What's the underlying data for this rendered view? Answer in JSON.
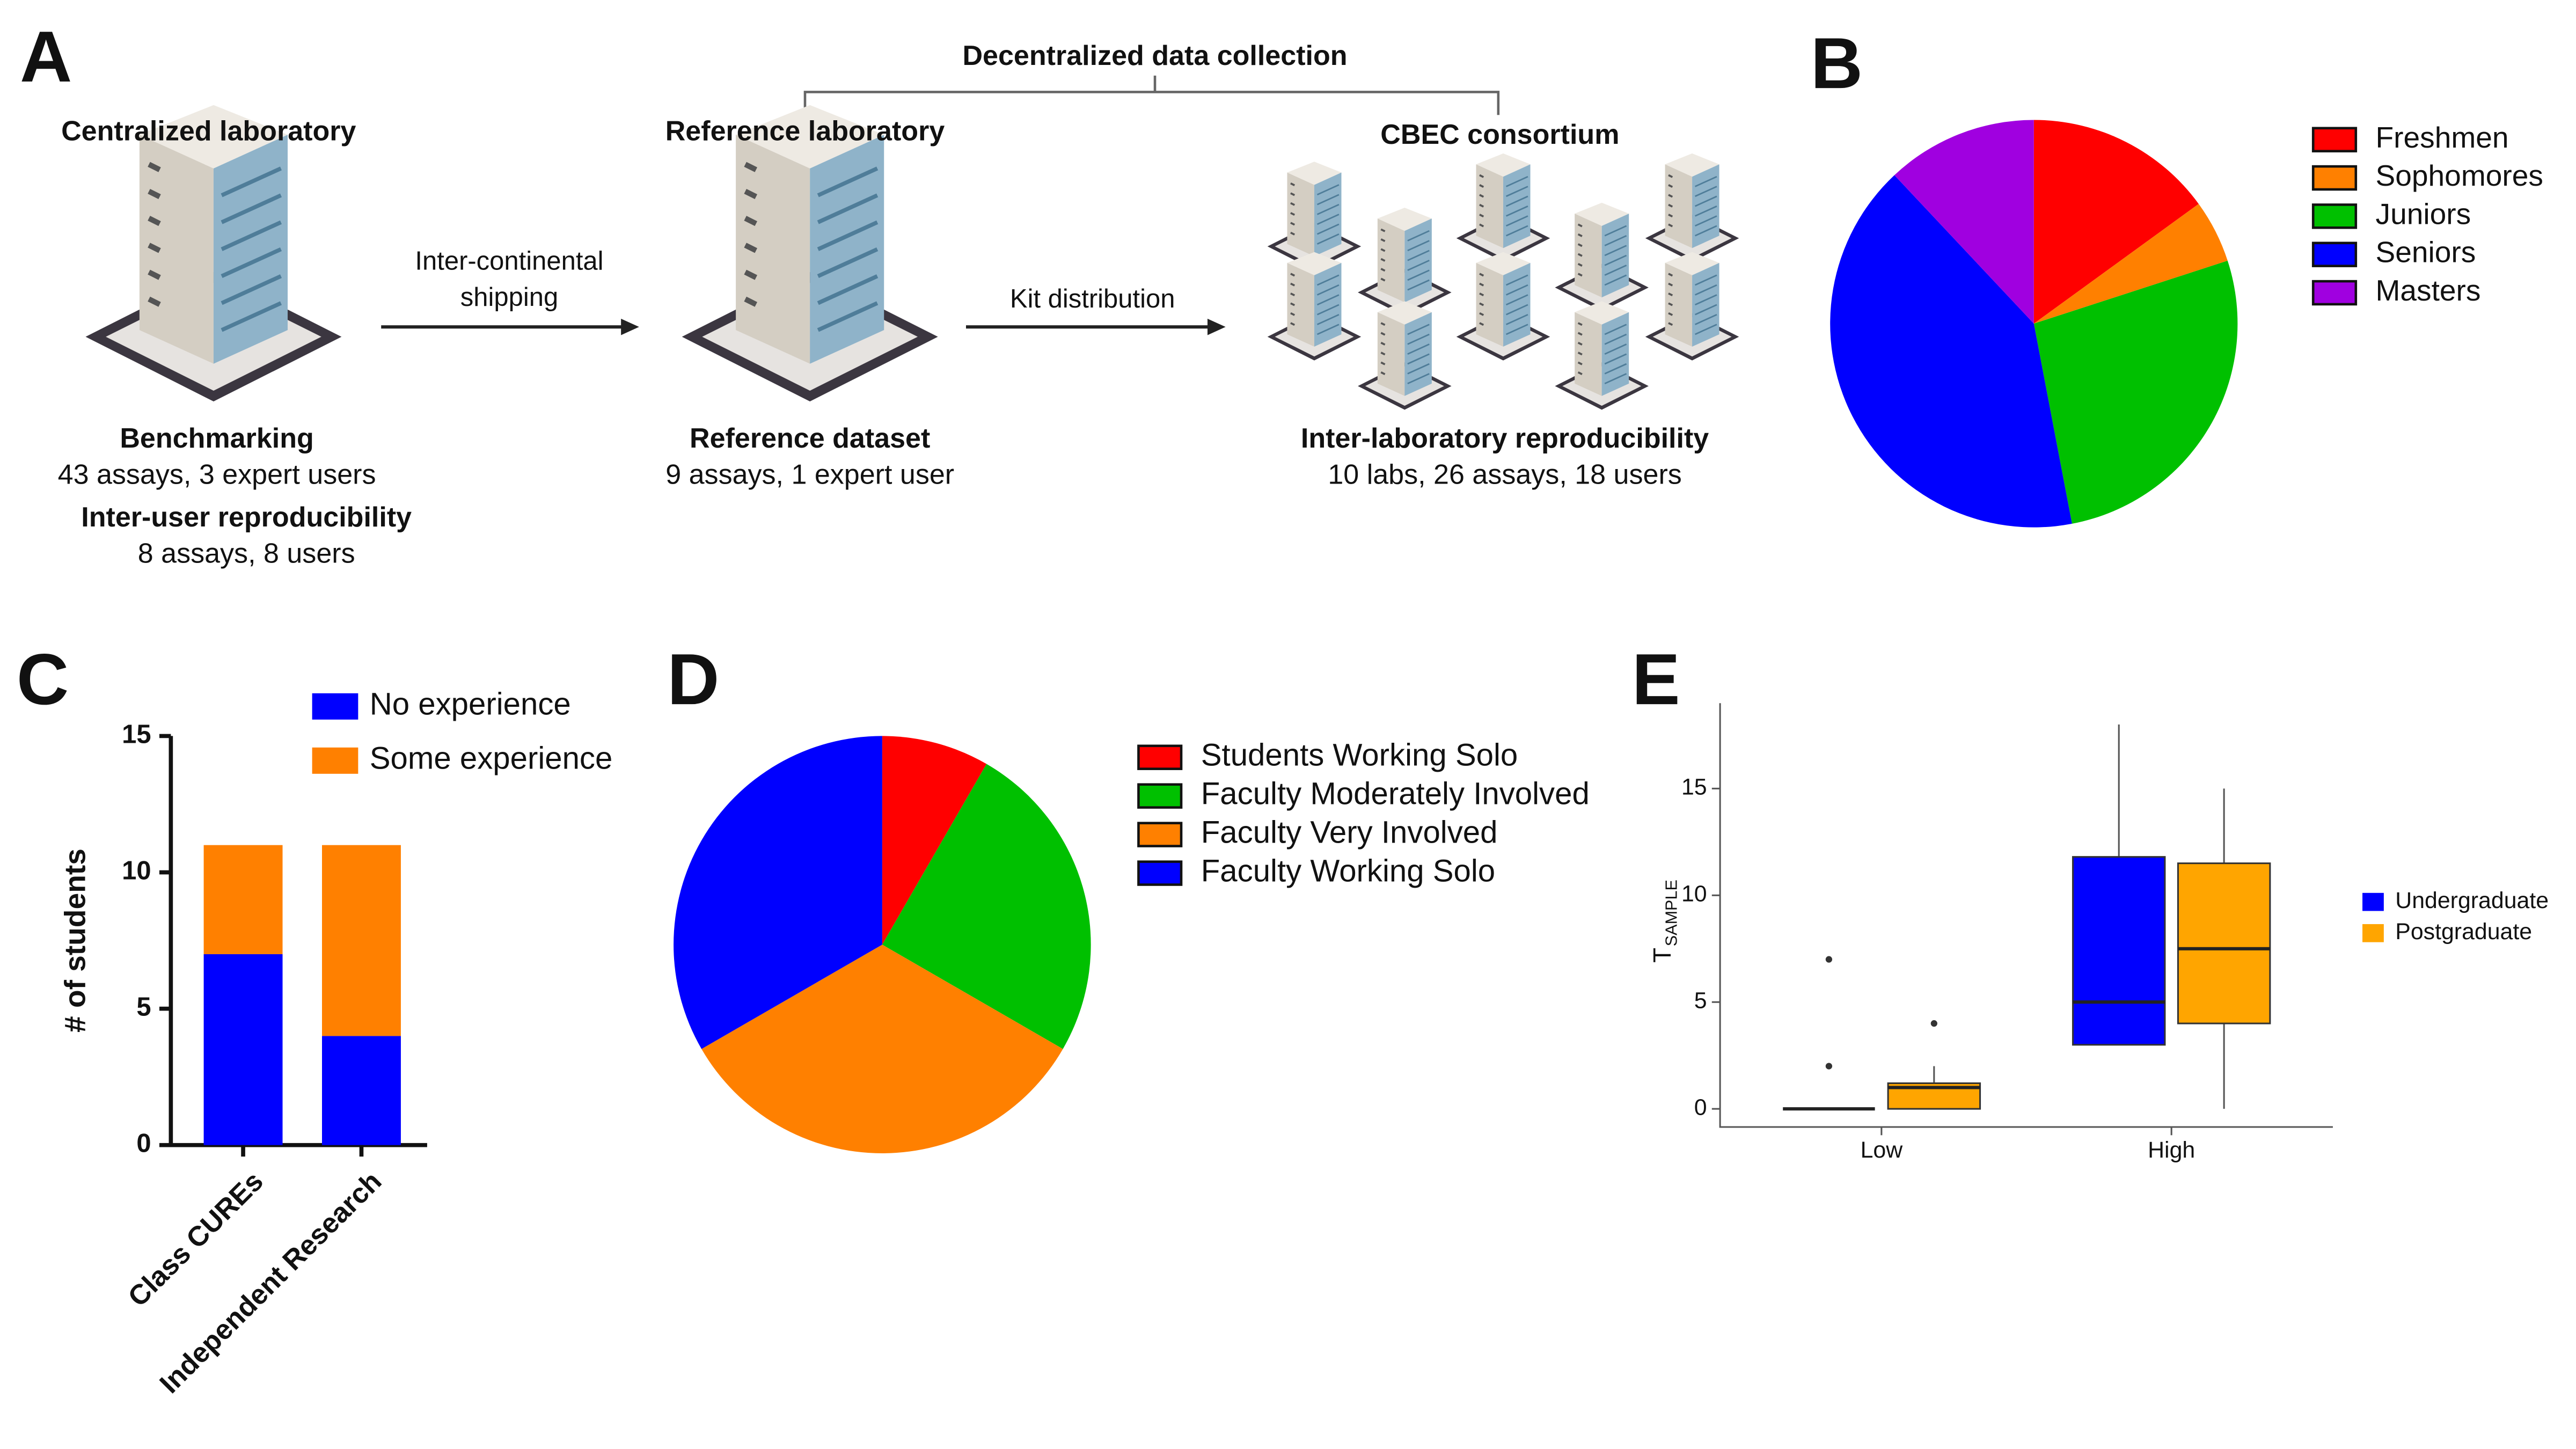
{
  "diagram": {
    "label": "A",
    "bracket_title": "Decentralized data collection",
    "nodes": [
      {
        "title": "Centralized laboratory",
        "sections": [
          {
            "heading": "Benchmarking",
            "detail": "43 assays, 3 expert users"
          },
          {
            "heading": "Inter-user reproducibility",
            "detail": "8 assays, 8 users"
          }
        ]
      },
      {
        "title": "Reference laboratory",
        "sections": [
          {
            "heading": "Reference dataset",
            "detail": "9 assays, 1 expert user"
          }
        ]
      },
      {
        "title": "CBEC consortium",
        "sections": [
          {
            "heading": "Inter-laboratory reproducibility",
            "detail": "10 labs, 26 assays, 18 users"
          }
        ]
      }
    ],
    "edges": [
      {
        "label": [
          "Inter-continental",
          "shipping"
        ]
      },
      {
        "label": [
          "Kit distribution"
        ]
      }
    ]
  },
  "chart_data": [
    {
      "type": "pie",
      "panel_label": "B",
      "categories": [
        "Freshmen",
        "Sophomores",
        "Juniors",
        "Seniors",
        "Masters"
      ],
      "values": [
        15,
        5,
        27,
        41,
        12
      ],
      "colors": [
        "#ff0000",
        "#ff8000",
        "#00c000",
        "#0000ff",
        "#a000e0"
      ]
    },
    {
      "type": "bar",
      "panel_label": "C",
      "stacked": true,
      "y_label": "# of students",
      "categories": [
        "Class CUREs",
        "Independent Research"
      ],
      "series": [
        {
          "name": "No experience",
          "color": "#0000ff",
          "values": [
            7,
            4
          ]
        },
        {
          "name": "Some experience",
          "color": "#ff8000",
          "values": [
            4,
            7
          ]
        }
      ],
      "ylim": [
        0,
        15
      ],
      "yticks": [
        0,
        5,
        10,
        15
      ]
    },
    {
      "type": "pie",
      "panel_label": "D",
      "categories": [
        "Students Working Solo",
        "Faculty Moderately Involved",
        "Faculty Very Involved",
        "Faculty Working Solo"
      ],
      "values": [
        1,
        3,
        4,
        4
      ],
      "colors": [
        "#ff0000",
        "#00c000",
        "#ff8000",
        "#0000ff"
      ]
    },
    {
      "type": "box",
      "panel_label": "E",
      "y_label": "T",
      "y_label_sub": "SAMPLE",
      "categories": [
        "Low",
        "High"
      ],
      "series": [
        {
          "name": "Undergraduate",
          "color": "#0000ff",
          "boxes": [
            {
              "min": 0,
              "q1": 0,
              "median": 0,
              "q3": 0,
              "max": 0,
              "outliers": [
                2,
                7
              ]
            },
            {
              "min": 3,
              "q1": 3,
              "median": 5,
              "q3": 11.8,
              "max": 18,
              "outliers": []
            }
          ]
        },
        {
          "name": "Postgraduate",
          "color": "#ffa500",
          "boxes": [
            {
              "min": 0,
              "q1": 0,
              "median": 1,
              "q3": 1.2,
              "max": 2,
              "outliers": [
                4
              ]
            },
            {
              "min": 0,
              "q1": 4,
              "median": 7.5,
              "q3": 11.5,
              "max": 15,
              "outliers": []
            }
          ]
        }
      ],
      "ylim": [
        -0.85,
        19
      ],
      "yticks": [
        0,
        5,
        10,
        15
      ]
    }
  ]
}
